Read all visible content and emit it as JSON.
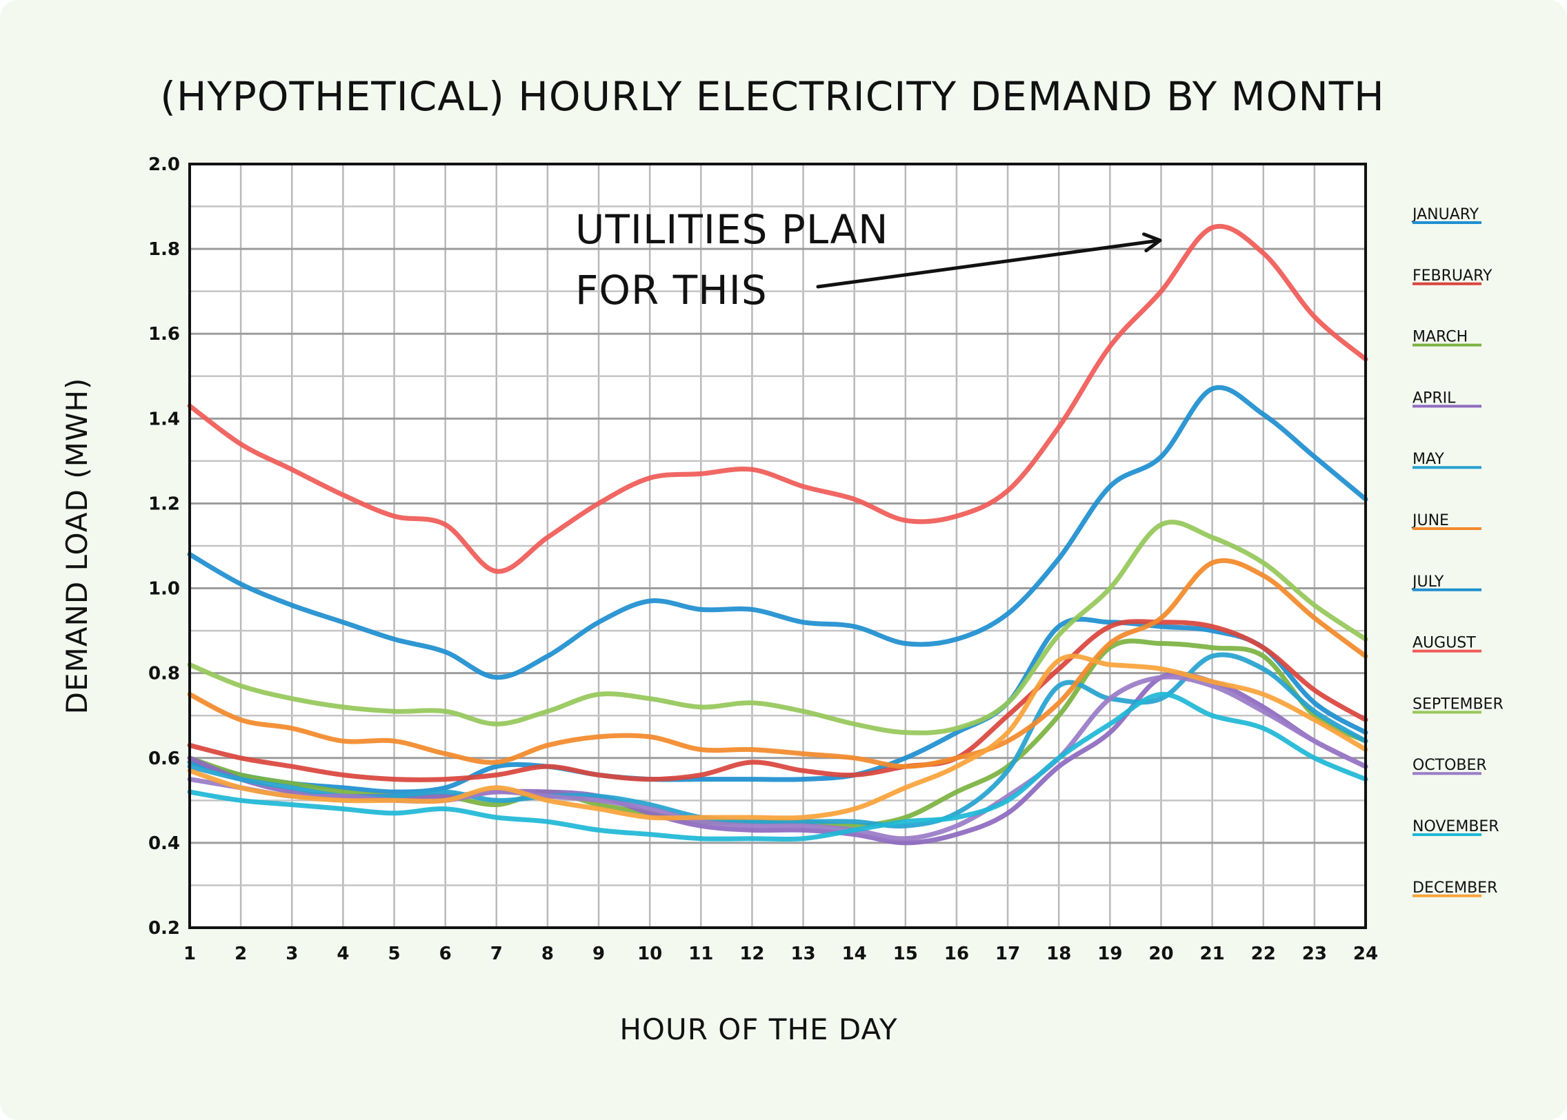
{
  "chart_data": {
    "type": "line",
    "title": "(HYPOTHETICAL) HOURLY ELECTRICITY DEMAND BY MONTH",
    "xlabel": "HOUR OF THE DAY",
    "ylabel": "DEMAND LOAD (MWH)",
    "x": [
      1,
      2,
      3,
      4,
      5,
      6,
      7,
      8,
      9,
      10,
      11,
      12,
      13,
      14,
      15,
      16,
      17,
      18,
      19,
      20,
      21,
      22,
      23,
      24
    ],
    "xticks": [
      "1",
      "2",
      "3",
      "4",
      "5",
      "6",
      "7",
      "8",
      "9",
      "10",
      "11",
      "12",
      "13",
      "14",
      "15",
      "16",
      "17",
      "18",
      "19",
      "20",
      "21",
      "22",
      "23",
      "24"
    ],
    "yticks": [
      "0.2",
      "0.4",
      "0.6",
      "0.8",
      "1.0",
      "1.2",
      "1.4",
      "1.6",
      "1.8",
      "2.0"
    ],
    "ylim": [
      0.2,
      2.0
    ],
    "xlim": [
      1,
      24
    ],
    "grid": true,
    "legend_position": "right",
    "annotation": {
      "lines": [
        "UTILITIES PLAN",
        "FOR THIS"
      ],
      "points_to": {
        "x": 20,
        "y": 1.82
      }
    },
    "series": [
      {
        "name": "JANUARY",
        "color": "#1f8fd0",
        "values": [
          0.59,
          0.56,
          0.54,
          0.53,
          0.52,
          0.53,
          0.58,
          0.58,
          0.56,
          0.55,
          0.55,
          0.55,
          0.55,
          0.56,
          0.6,
          0.66,
          0.73,
          0.91,
          0.92,
          0.91,
          0.9,
          0.86,
          0.73,
          0.66
        ]
      },
      {
        "name": "FEBRUARY",
        "color": "#d9463d",
        "values": [
          0.63,
          0.6,
          0.58,
          0.56,
          0.55,
          0.55,
          0.56,
          0.58,
          0.56,
          0.55,
          0.56,
          0.59,
          0.57,
          0.56,
          0.58,
          0.6,
          0.7,
          0.81,
          0.91,
          0.92,
          0.91,
          0.86,
          0.76,
          0.69
        ]
      },
      {
        "name": "MARCH",
        "color": "#7cb342",
        "values": [
          0.6,
          0.56,
          0.54,
          0.52,
          0.51,
          0.51,
          0.49,
          0.52,
          0.49,
          0.47,
          0.45,
          0.45,
          0.45,
          0.44,
          0.46,
          0.52,
          0.58,
          0.7,
          0.86,
          0.87,
          0.86,
          0.84,
          0.7,
          0.64
        ]
      },
      {
        "name": "APRIL",
        "color": "#8e6bbf",
        "values": [
          0.6,
          0.55,
          0.52,
          0.51,
          0.51,
          0.51,
          0.52,
          0.52,
          0.51,
          0.47,
          0.44,
          0.43,
          0.43,
          0.42,
          0.4,
          0.42,
          0.47,
          0.58,
          0.66,
          0.79,
          0.78,
          0.72,
          0.64,
          0.58
        ]
      },
      {
        "name": "MAY",
        "color": "#27a2d0",
        "values": [
          0.58,
          0.55,
          0.53,
          0.51,
          0.51,
          0.52,
          0.5,
          0.51,
          0.51,
          0.49,
          0.46,
          0.45,
          0.45,
          0.45,
          0.44,
          0.47,
          0.57,
          0.77,
          0.74,
          0.74,
          0.84,
          0.81,
          0.71,
          0.64
        ]
      },
      {
        "name": "JUNE",
        "color": "#f28a2b",
        "values": [
          0.75,
          0.69,
          0.67,
          0.64,
          0.64,
          0.61,
          0.59,
          0.63,
          0.65,
          0.65,
          0.62,
          0.62,
          0.61,
          0.6,
          0.58,
          0.6,
          0.64,
          0.73,
          0.87,
          0.93,
          1.06,
          1.03,
          0.93,
          0.84
        ]
      },
      {
        "name": "JULY",
        "color": "#1f8fd0",
        "values": [
          1.08,
          1.01,
          0.96,
          0.92,
          0.88,
          0.85,
          0.79,
          0.84,
          0.92,
          0.97,
          0.95,
          0.95,
          0.92,
          0.91,
          0.87,
          0.88,
          0.94,
          1.07,
          1.24,
          1.31,
          1.47,
          1.41,
          1.31,
          1.21
        ]
      },
      {
        "name": "AUGUST",
        "color": "#ef5b57",
        "values": [
          1.43,
          1.34,
          1.28,
          1.22,
          1.17,
          1.15,
          1.04,
          1.12,
          1.2,
          1.26,
          1.27,
          1.28,
          1.24,
          1.21,
          1.16,
          1.17,
          1.23,
          1.38,
          1.57,
          1.7,
          1.85,
          1.79,
          1.64,
          1.54
        ]
      },
      {
        "name": "SEPTEMBER",
        "color": "#96c75a",
        "values": [
          0.82,
          0.77,
          0.74,
          0.72,
          0.71,
          0.71,
          0.68,
          0.71,
          0.75,
          0.74,
          0.72,
          0.73,
          0.71,
          0.68,
          0.66,
          0.67,
          0.73,
          0.89,
          1.0,
          1.15,
          1.12,
          1.06,
          0.96,
          0.88
        ]
      },
      {
        "name": "OCTOBER",
        "color": "#9a7cc7",
        "values": [
          0.55,
          0.53,
          0.51,
          0.51,
          0.5,
          0.5,
          0.52,
          0.51,
          0.5,
          0.48,
          0.45,
          0.44,
          0.44,
          0.43,
          0.41,
          0.44,
          0.51,
          0.6,
          0.74,
          0.79,
          0.77,
          0.71,
          0.64,
          0.58
        ]
      },
      {
        "name": "NOVEMBER",
        "color": "#1fb8d6",
        "values": [
          0.52,
          0.5,
          0.49,
          0.48,
          0.47,
          0.48,
          0.46,
          0.45,
          0.43,
          0.42,
          0.41,
          0.41,
          0.41,
          0.43,
          0.45,
          0.46,
          0.5,
          0.6,
          0.68,
          0.75,
          0.7,
          0.67,
          0.6,
          0.55
        ]
      },
      {
        "name": "DECEMBER",
        "color": "#f9a23a",
        "values": [
          0.57,
          0.53,
          0.51,
          0.5,
          0.5,
          0.5,
          0.53,
          0.5,
          0.48,
          0.46,
          0.46,
          0.46,
          0.46,
          0.48,
          0.53,
          0.58,
          0.66,
          0.83,
          0.82,
          0.81,
          0.78,
          0.75,
          0.69,
          0.62
        ]
      }
    ]
  }
}
